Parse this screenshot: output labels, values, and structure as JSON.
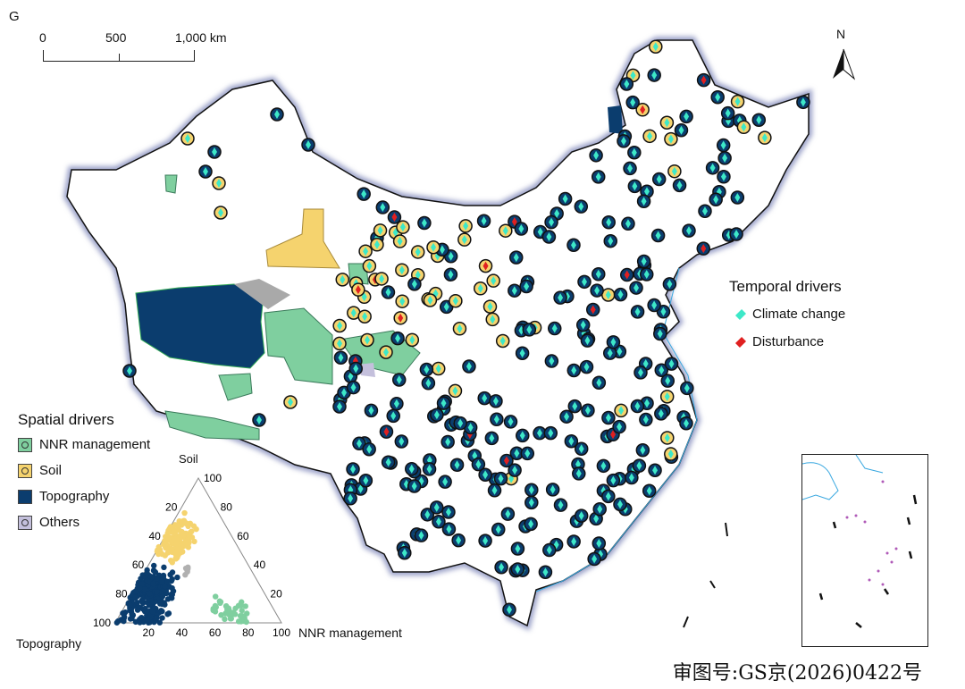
{
  "panel_label": "G",
  "scale_bar": {
    "labels": [
      "0",
      "500",
      "1,000 km"
    ]
  },
  "north_arrow": {
    "label": "N"
  },
  "temporal_legend": {
    "title": "Temporal drivers",
    "items": [
      {
        "label": "Climate change",
        "color": "#3de8c8"
      },
      {
        "label": "Disturbance",
        "color": "#e02020"
      }
    ]
  },
  "spatial_legend": {
    "title": "Spatial drivers",
    "items": [
      {
        "label": "NNR management",
        "color": "#7fcf9f"
      },
      {
        "label": "Soil",
        "color": "#f5d36e"
      },
      {
        "label": "Topography",
        "color": "#0b3d6e"
      },
      {
        "label": "Others",
        "color": "#c4c0dc"
      }
    ]
  },
  "ternary": {
    "axis_top": "Soil",
    "axis_left": "Topography",
    "axis_right": "NNR management",
    "ticks": [
      "20",
      "40",
      "60",
      "80",
      "100"
    ]
  },
  "map_approval": "审图号:GS京(2026)0422号"
}
